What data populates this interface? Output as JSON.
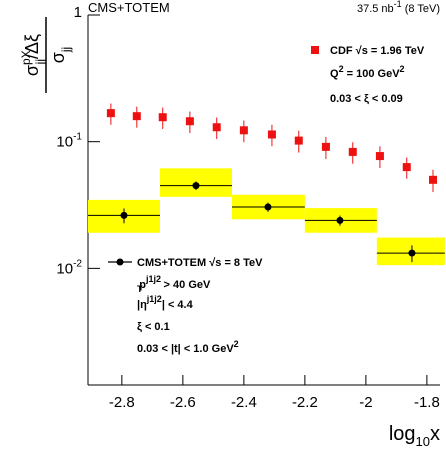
{
  "chart_data": {
    "type": "scatter",
    "title_left": "CMS+TOTEM",
    "title_right": [
      "37.5 nb",
      "-1",
      " (8 TeV)"
    ],
    "ylabel": {
      "num": [
        "σ",
        "pX",
        "jj",
        "/Δξ"
      ],
      "den": [
        "σ",
        "jj"
      ]
    },
    "xlabel": [
      "log",
      "10",
      "x"
    ],
    "xlim": [
      -2.911,
      -1.757
    ],
    "ylim": [
      0.0012,
      1
    ],
    "log_y": true,
    "xticks": [
      -2.8,
      -2.6,
      -2.4,
      -2.2,
      -2,
      -1.8
    ],
    "yticks": [
      {
        "value": 0.01,
        "label": "10"
      },
      {
        "value": 0.1,
        "label": "10"
      },
      1
    ],
    "ytick_exponents": [
      "-2",
      "-1"
    ],
    "series": [
      {
        "name": [
          "CDF ",
          "√s = 1.96 TeV"
        ],
        "color": "#ee1111",
        "notes": [
          [
            "Q",
            "2",
            " = 100 GeV",
            "2"
          ],
          [
            "0.03 < ξ < 0.09"
          ]
        ],
        "x": [
          -2.836,
          -2.751,
          -2.666,
          -2.577,
          -2.489,
          -2.4,
          -2.308,
          -2.22,
          -2.131,
          -2.043,
          -1.954,
          -1.866,
          -1.78
        ],
        "values": [
          0.168,
          0.159,
          0.156,
          0.145,
          0.13,
          0.123,
          0.114,
          0.102,
          0.091,
          0.083,
          0.077,
          0.063,
          0.05
        ],
        "errors": [
          0.032,
          0.03,
          0.03,
          0.028,
          0.025,
          0.024,
          0.022,
          0.02,
          0.018,
          0.016,
          0.015,
          0.012,
          0.01
        ]
      },
      {
        "name": [
          "CMS+TOTEM ",
          "√s = 8 TeV"
        ],
        "color": "#000000",
        "band_color": "#ffff00",
        "notes": [
          [
            "p",
            "j1j2",
            "T",
            " > 40 GeV"
          ],
          [
            "|η",
            "j1j2",
            "| < 4.4"
          ],
          [
            "ξ < 0.1"
          ],
          [
            "0.03 < |t| < 1.0 GeV",
            "2"
          ]
        ],
        "bins": [
          -2.911,
          -2.675,
          -2.439,
          -2.2,
          -1.964,
          -1.741
        ],
        "x": [
          -2.793,
          -2.557,
          -2.321,
          -2.085,
          -1.849
        ],
        "values": [
          0.0262,
          0.045,
          0.0305,
          0.0239,
          0.0132
        ],
        "errors": [
          0.0035,
          0.0035,
          0.0025,
          0.0022,
          0.002
        ],
        "sys_low": [
          0.0191,
          0.0367,
          0.0244,
          0.0191,
          0.0106
        ],
        "sys_high": [
          0.0347,
          0.0616,
          0.0381,
          0.0299,
          0.0175
        ]
      }
    ]
  }
}
